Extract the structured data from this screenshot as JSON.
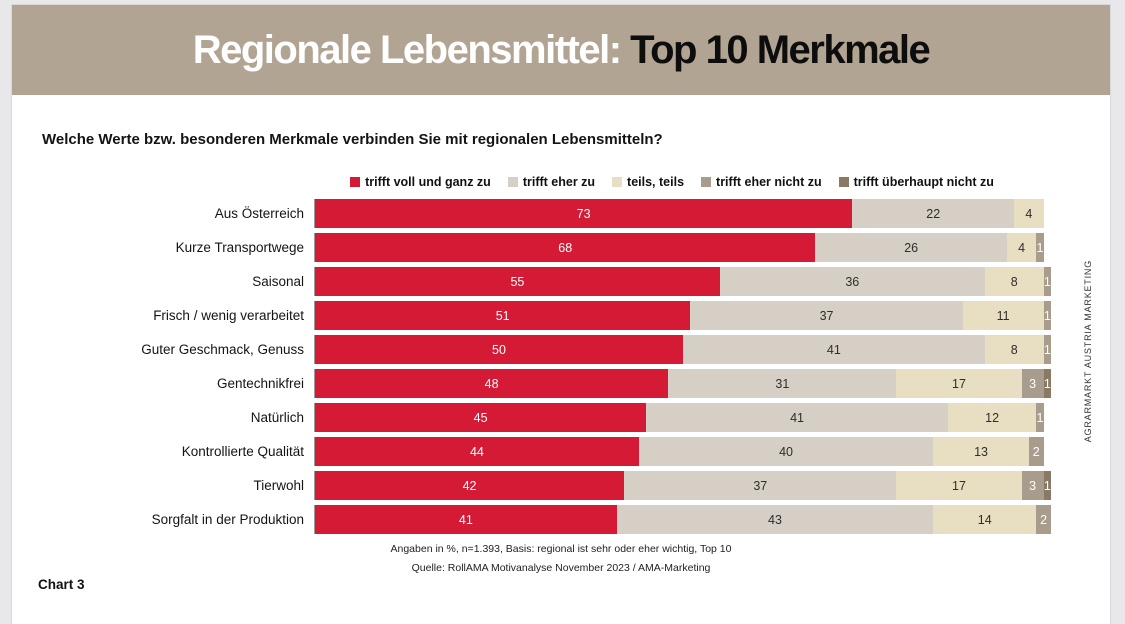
{
  "window": {
    "title_left": "Regionale Lebensmittel: ",
    "title_right": "Top 10 Merkmale"
  },
  "question": "Welche Werte bzw. besonderen Merkmale verbinden Sie mit regionalen Lebensmitteln?",
  "colors": {
    "page_bg": "#e8e7e9",
    "header_bg": "#b2a492",
    "accent_red": "#d41a35"
  },
  "chart_data": {
    "type": "bar",
    "orientation": "horizontal",
    "stacked": true,
    "xlim": [
      0,
      100
    ],
    "unit": "%",
    "categories": [
      "Aus Österreich",
      "Kurze Transportwege",
      "Saisonal",
      "Frisch / wenig verarbeitet",
      "Guter Geschmack, Genuss",
      "Gentechnikfrei",
      "Natürlich",
      "Kontrollierte Qualität",
      "Tierwohl",
      "Sorgfalt in der Produktion"
    ],
    "series": [
      {
        "name": "trifft voll und ganz zu",
        "color": "#d41a35",
        "text_color": "#ffffff",
        "values": [
          73,
          68,
          55,
          51,
          50,
          48,
          45,
          44,
          42,
          41
        ]
      },
      {
        "name": "trifft eher zu",
        "color": "#d5cfc5",
        "text_color": "#2e2e2e",
        "values": [
          22,
          26,
          36,
          37,
          41,
          31,
          41,
          40,
          37,
          43
        ]
      },
      {
        "name": "teils, teils",
        "color": "#e8dfc2",
        "text_color": "#2e2e2e",
        "values": [
          4,
          4,
          8,
          11,
          8,
          17,
          12,
          13,
          17,
          14
        ]
      },
      {
        "name": "trifft eher nicht zu",
        "color": "#a89c8c",
        "text_color": "#ffffff",
        "values": [
          0,
          1,
          1,
          1,
          1,
          3,
          1,
          2,
          3,
          2
        ]
      },
      {
        "name": "trifft überhaupt nicht zu",
        "color": "#8a7a65",
        "text_color": "#ffffff",
        "values": [
          0,
          0,
          0,
          0,
          0,
          1,
          0,
          0,
          1,
          0
        ]
      }
    ],
    "note": "Angaben in %, n=1.393, Basis: regional ist sehr oder eher wichtig, Top 10",
    "source": "Quelle: RollAMA Motivanalyse November 2023 / AMA-Marketing"
  },
  "footer": {
    "chart_label": "Chart 3",
    "side_text": "AGRARMARKT AUSTRIA MARKETING"
  }
}
